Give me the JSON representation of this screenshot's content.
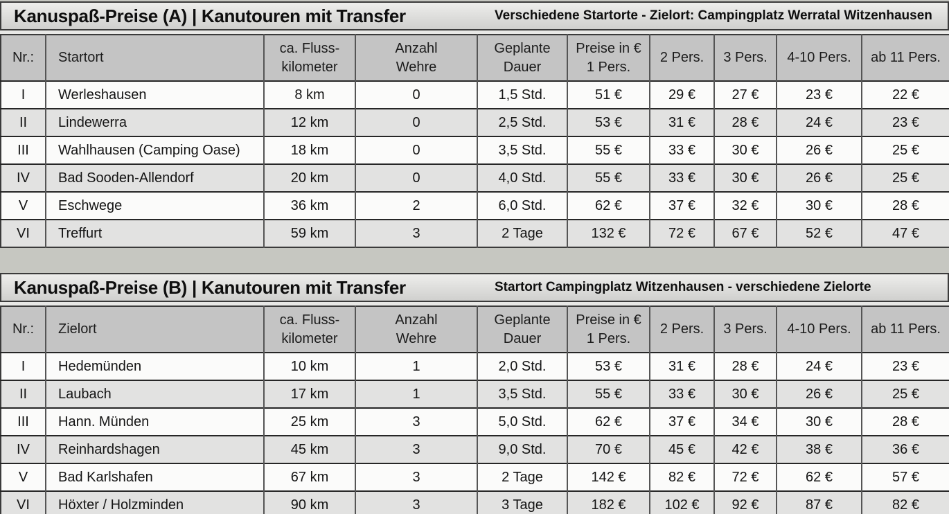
{
  "page": {
    "background_color": "#c6c7c1"
  },
  "tables": [
    {
      "id": "A",
      "title": "Kanuspaß-Preise (A) | Kanutouren mit Transfer",
      "subtitle": "Verschiedene Startorte - Zielort: Campingplatz Werratal Witzenhausen",
      "columns": [
        "Nr.:",
        "Startort",
        "ca. Fluss-\nkilometer",
        "Anzahl\nWehre",
        "Geplante\nDauer",
        "Preise in €\n1 Pers.",
        "2 Pers.",
        "3 Pers.",
        "4-10 Pers.",
        "ab 11 Pers."
      ],
      "rows": [
        [
          "I",
          "Werleshausen",
          "8 km",
          "0",
          "1,5 Std.",
          "51 €",
          "29 €",
          "27 €",
          "23 €",
          "22 €"
        ],
        [
          "II",
          "Lindewerra",
          "12 km",
          "0",
          "2,5 Std.",
          "53 €",
          "31 €",
          "28 €",
          "24 €",
          "23 €"
        ],
        [
          "III",
          "Wahlhausen (Camping Oase)",
          "18 km",
          "0",
          "3,5 Std.",
          "55 €",
          "33 €",
          "30 €",
          "26 €",
          "25 €"
        ],
        [
          "IV",
          "Bad Sooden-Allendorf",
          "20 km",
          "0",
          "4,0 Std.",
          "55 €",
          "33 €",
          "30 €",
          "26 €",
          "25 €"
        ],
        [
          "V",
          "Eschwege",
          "36 km",
          "2",
          "6,0 Std.",
          "62 €",
          "37 €",
          "32 €",
          "30 €",
          "28 €"
        ],
        [
          "VI",
          "Treffurt",
          "59 km",
          "3",
          "2 Tage",
          "132 €",
          "72 €",
          "67 €",
          "52 €",
          "47 €"
        ]
      ]
    },
    {
      "id": "B",
      "title": "Kanuspaß-Preise (B) | Kanutouren mit Transfer",
      "subtitle": "Startort Campingplatz Witzenhausen - verschiedene Zielorte",
      "columns": [
        "Nr.:",
        "Zielort",
        "ca. Fluss-\nkilometer",
        "Anzahl\nWehre",
        "Geplante\nDauer",
        "Preise in €\n1 Pers.",
        "2 Pers.",
        "3 Pers.",
        "4-10 Pers.",
        "ab 11 Pers."
      ],
      "rows": [
        [
          "I",
          "Hedemünden",
          "10 km",
          "1",
          "2,0 Std.",
          "53 €",
          "31 €",
          "28 €",
          "24 €",
          "23 €"
        ],
        [
          "II",
          "Laubach",
          "17 km",
          "1",
          "3,5 Std.",
          "55 €",
          "33 €",
          "30 €",
          "26 €",
          "25 €"
        ],
        [
          "III",
          "Hann. Münden",
          "25 km",
          "3",
          "5,0 Std.",
          "62 €",
          "37 €",
          "34 €",
          "30 €",
          "28 €"
        ],
        [
          "IV",
          "Reinhardshagen",
          "45 km",
          "3",
          "9,0 Std.",
          "70 €",
          "45 €",
          "42 €",
          "38 €",
          "36 €"
        ],
        [
          "V",
          "Bad Karlshafen",
          "67 km",
          "3",
          "2 Tage",
          "142 €",
          "82 €",
          "72 €",
          "62 €",
          "57 €"
        ],
        [
          "VI",
          "Höxter / Holzminden",
          "90 km",
          "3",
          "3 Tage",
          "182 €",
          "102 €",
          "92 €",
          "87 €",
          "82 €"
        ]
      ]
    }
  ]
}
